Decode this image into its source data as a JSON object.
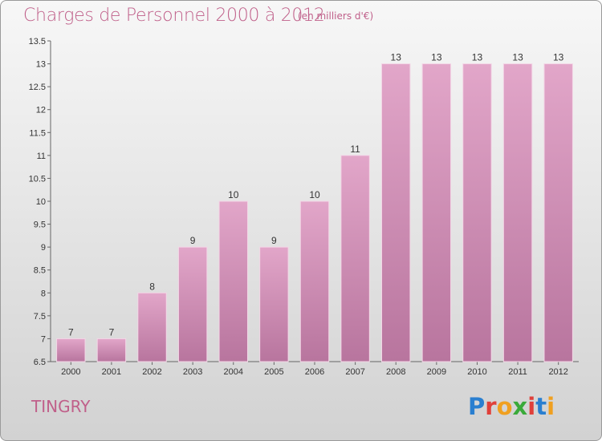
{
  "header": {
    "title": "Charges de Personnel 2000 à 2012",
    "subtitle": "(en milliers d'€)"
  },
  "footer": {
    "commune": "TINGRY",
    "logo_letters": [
      "P",
      "r",
      "o",
      "x",
      "i",
      "t",
      "i"
    ],
    "logo_colors": [
      "#2a7fd0",
      "#e0403a",
      "#f0a020",
      "#3aaa3a",
      "#e0403a",
      "#2a7fd0",
      "#f0a020"
    ]
  },
  "colors": {
    "bar_top": "#e2a6c9",
    "bar_bottom": "#b8759e",
    "text_accent": "#c0608a"
  },
  "chart_data": {
    "type": "bar",
    "title": "Charges de Personnel 2000 à 2012",
    "subtitle": "(en milliers d'€)",
    "categories": [
      "2000",
      "2001",
      "2002",
      "2003",
      "2004",
      "2005",
      "2006",
      "2007",
      "2008",
      "2009",
      "2010",
      "2011",
      "2012"
    ],
    "values": [
      7,
      7,
      8,
      9,
      10,
      9,
      10,
      11,
      13,
      13,
      13,
      13,
      13
    ],
    "ylim": [
      6.5,
      13.5
    ],
    "yticks": [
      6.5,
      7,
      7.5,
      8,
      8.5,
      9,
      9.5,
      10,
      10.5,
      11,
      11.5,
      12,
      12.5,
      13,
      13.5
    ],
    "grid": false
  }
}
